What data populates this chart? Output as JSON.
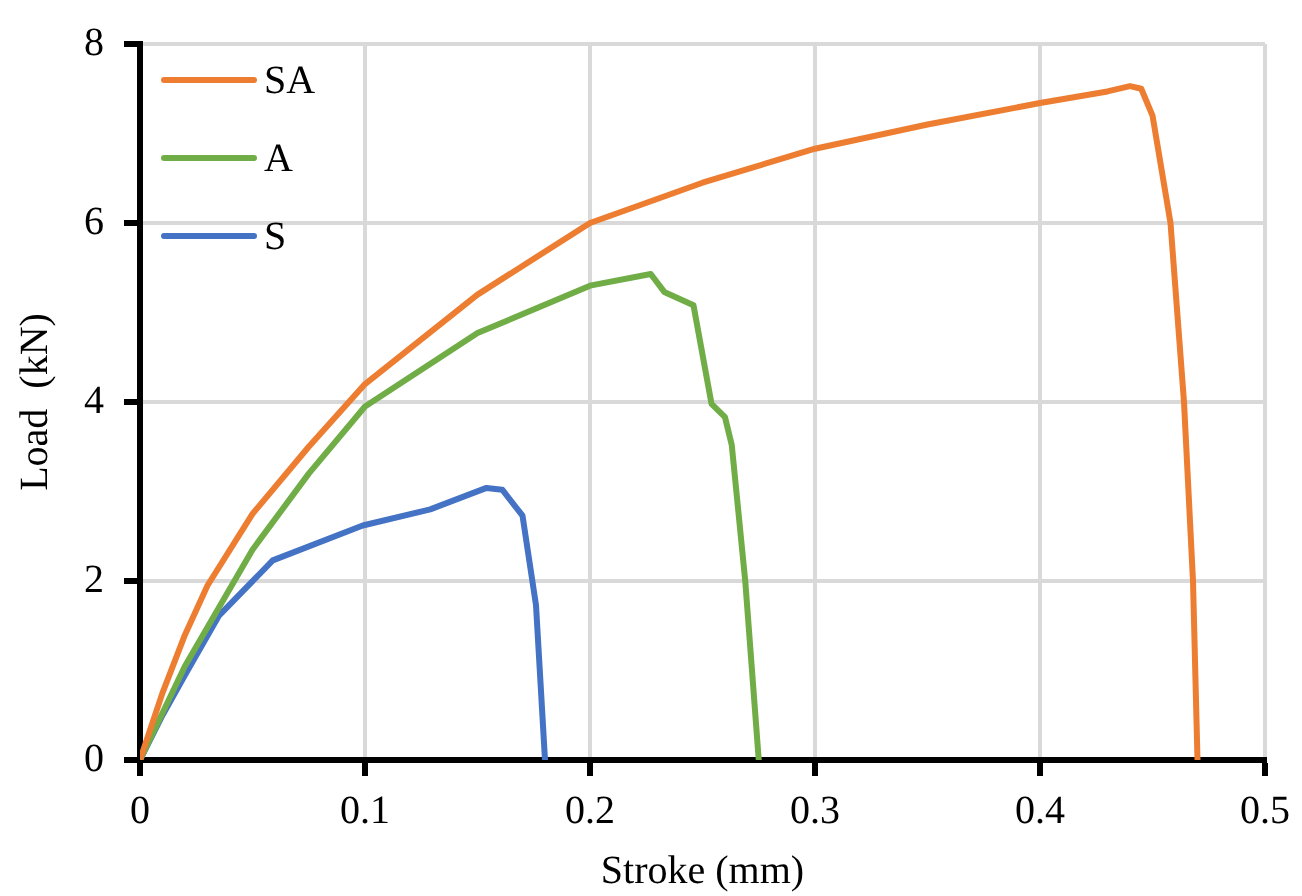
{
  "chart_data": {
    "type": "line",
    "xlabel": "Stroke (mm)",
    "ylabel": "Load  (kN)",
    "xlim": [
      0,
      0.5
    ],
    "xticks": [
      0,
      0.1,
      0.2,
      0.3,
      0.4,
      0.5
    ],
    "ylim": [
      0,
      8
    ],
    "yticks": [
      0,
      2,
      4,
      6,
      8
    ],
    "grid": true,
    "legend": "top left",
    "marker": "none",
    "line_style": "solid",
    "series": [
      {
        "name": "SA",
        "color": "#ed7d31",
        "x": [
          0,
          0.01,
          0.02,
          0.03,
          0.05,
          0.075,
          0.1,
          0.15,
          0.2,
          0.25,
          0.3,
          0.35,
          0.4,
          0.43,
          0.44,
          0.445,
          0.45,
          0.458,
          0.464,
          0.468,
          0.47
        ],
        "values": [
          0,
          0.75,
          1.4,
          1.95,
          2.75,
          3.5,
          4.2,
          5.2,
          6.0,
          6.45,
          6.83,
          7.1,
          7.34,
          7.47,
          7.53,
          7.5,
          7.2,
          6.0,
          4.0,
          2.0,
          0
        ]
      },
      {
        "name": "A",
        "color": "#70ad47",
        "x": [
          0,
          0.02,
          0.05,
          0.075,
          0.1,
          0.15,
          0.2,
          0.227,
          0.233,
          0.246,
          0.254,
          0.26,
          0.263,
          0.269,
          0.275
        ],
        "values": [
          0,
          1.05,
          2.35,
          3.2,
          3.95,
          4.77,
          5.3,
          5.43,
          5.23,
          5.08,
          3.98,
          3.83,
          3.52,
          2.0,
          0
        ]
      },
      {
        "name": "S",
        "color": "#4472c4",
        "x": [
          0,
          0.01,
          0.02,
          0.035,
          0.059,
          0.099,
          0.129,
          0.154,
          0.161,
          0.17,
          0.176,
          0.18
        ],
        "values": [
          0,
          0.5,
          0.95,
          1.61,
          2.23,
          2.62,
          2.8,
          3.04,
          3.02,
          2.73,
          1.73,
          0
        ]
      }
    ]
  }
}
